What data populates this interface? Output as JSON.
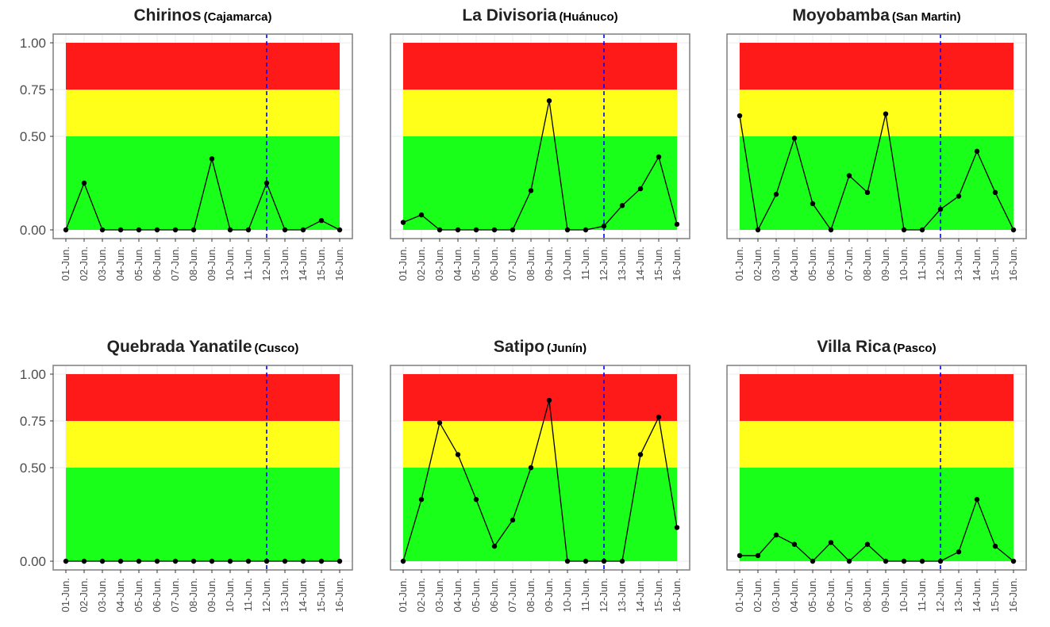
{
  "dates": [
    "01-Jun.",
    "02-Jun.",
    "03-Jun.",
    "04-Jun.",
    "05-Jun.",
    "06-Jun.",
    "07-Jun.",
    "08-Jun.",
    "09-Jun.",
    "10-Jun.",
    "11-Jun.",
    "12-Jun.",
    "13-Jun.",
    "14-Jun.",
    "15-Jun.",
    "16-Jun."
  ],
  "colors": {
    "red": "#ff1a1a",
    "yellow": "#ffff1a",
    "green": "#1aff1a",
    "line": "#000000",
    "vline": "#0000ff",
    "grid": "#ebebeb",
    "border": "#7f7f7f"
  },
  "chart_data": [
    {
      "type": "line",
      "title": "Chirinos",
      "subtitle": "(Cajamarca)",
      "x": [
        "01-Jun.",
        "02-Jun.",
        "03-Jun.",
        "04-Jun.",
        "05-Jun.",
        "06-Jun.",
        "07-Jun.",
        "08-Jun.",
        "09-Jun.",
        "10-Jun.",
        "11-Jun.",
        "12-Jun.",
        "13-Jun.",
        "14-Jun.",
        "15-Jun.",
        "16-Jun."
      ],
      "y": [
        0,
        0.25,
        0,
        0,
        0,
        0,
        0,
        0,
        0.38,
        0,
        0,
        0.25,
        0,
        0,
        0.05,
        0
      ],
      "yticks": [
        "0.00",
        "0.50",
        "0.75",
        "1.00"
      ],
      "ylim": [
        0,
        1
      ],
      "bands": [
        {
          "from": 0,
          "to": 0.5,
          "color": "green"
        },
        {
          "from": 0.5,
          "to": 0.75,
          "color": "yellow"
        },
        {
          "from": 0.75,
          "to": 1,
          "color": "red"
        }
      ],
      "vline_at": "12-Jun."
    },
    {
      "type": "line",
      "title": "La Divisoria",
      "subtitle": "(Huánuco)",
      "x": [
        "01-Jun.",
        "02-Jun.",
        "03-Jun.",
        "04-Jun.",
        "05-Jun.",
        "06-Jun.",
        "07-Jun.",
        "08-Jun.",
        "09-Jun.",
        "10-Jun.",
        "11-Jun.",
        "12-Jun.",
        "13-Jun.",
        "14-Jun.",
        "15-Jun.",
        "16-Jun."
      ],
      "y": [
        0.04,
        0.08,
        0,
        0,
        0,
        0,
        0,
        0.21,
        0.69,
        0,
        0,
        0.02,
        0.13,
        0.22,
        0.39,
        0.03
      ],
      "yticks": [
        "0.00",
        "0.50",
        "0.75",
        "1.00"
      ],
      "ylim": [
        0,
        1
      ],
      "bands": [
        {
          "from": 0,
          "to": 0.5,
          "color": "green"
        },
        {
          "from": 0.5,
          "to": 0.75,
          "color": "yellow"
        },
        {
          "from": 0.75,
          "to": 1,
          "color": "red"
        }
      ],
      "vline_at": "12-Jun."
    },
    {
      "type": "line",
      "title": "Moyobamba",
      "subtitle": "(San Martin)",
      "x": [
        "01-Jun.",
        "02-Jun.",
        "03-Jun.",
        "04-Jun.",
        "05-Jun.",
        "06-Jun.",
        "07-Jun.",
        "08-Jun.",
        "09-Jun.",
        "10-Jun.",
        "11-Jun.",
        "12-Jun.",
        "13-Jun.",
        "14-Jun.",
        "15-Jun.",
        "16-Jun."
      ],
      "y": [
        0.61,
        0,
        0.19,
        0.49,
        0.14,
        0,
        0.29,
        0.2,
        0.62,
        0,
        0,
        0.11,
        0.18,
        0.42,
        0.2,
        0
      ],
      "yticks": [
        "0.00",
        "0.50",
        "0.75",
        "1.00"
      ],
      "ylim": [
        0,
        1
      ],
      "bands": [
        {
          "from": 0,
          "to": 0.5,
          "color": "green"
        },
        {
          "from": 0.5,
          "to": 0.75,
          "color": "yellow"
        },
        {
          "from": 0.75,
          "to": 1,
          "color": "red"
        }
      ],
      "vline_at": "12-Jun."
    },
    {
      "type": "line",
      "title": "Quebrada Yanatile",
      "subtitle": "(Cusco)",
      "x": [
        "01-Jun.",
        "02-Jun.",
        "03-Jun.",
        "04-Jun.",
        "05-Jun.",
        "06-Jun.",
        "07-Jun.",
        "08-Jun.",
        "09-Jun.",
        "10-Jun.",
        "11-Jun.",
        "12-Jun.",
        "13-Jun.",
        "14-Jun.",
        "15-Jun.",
        "16-Jun."
      ],
      "y": [
        0,
        0,
        0,
        0,
        0,
        0,
        0,
        0,
        0,
        0,
        0,
        0,
        0,
        0,
        0,
        0
      ],
      "yticks": [
        "0.00",
        "0.50",
        "0.75",
        "1.00"
      ],
      "ylim": [
        0,
        1
      ],
      "bands": [
        {
          "from": 0,
          "to": 0.5,
          "color": "green"
        },
        {
          "from": 0.5,
          "to": 0.75,
          "color": "yellow"
        },
        {
          "from": 0.75,
          "to": 1,
          "color": "red"
        }
      ],
      "vline_at": "12-Jun."
    },
    {
      "type": "line",
      "title": "Satipo",
      "subtitle": "(Junín)",
      "x": [
        "01-Jun.",
        "02-Jun.",
        "03-Jun.",
        "04-Jun.",
        "05-Jun.",
        "06-Jun.",
        "07-Jun.",
        "08-Jun.",
        "09-Jun.",
        "10-Jun.",
        "11-Jun.",
        "12-Jun.",
        "13-Jun.",
        "14-Jun.",
        "15-Jun.",
        "16-Jun."
      ],
      "y": [
        0,
        0.33,
        0.74,
        0.57,
        0.33,
        0.08,
        0.22,
        0.5,
        0.86,
        0,
        0,
        0,
        0,
        0.57,
        0.77,
        0.18
      ],
      "yticks": [
        "0.00",
        "0.50",
        "0.75",
        "1.00"
      ],
      "ylim": [
        0,
        1
      ],
      "bands": [
        {
          "from": 0,
          "to": 0.5,
          "color": "green"
        },
        {
          "from": 0.5,
          "to": 0.75,
          "color": "yellow"
        },
        {
          "from": 0.75,
          "to": 1,
          "color": "red"
        }
      ],
      "vline_at": "12-Jun."
    },
    {
      "type": "line",
      "title": "Villa Rica",
      "subtitle": "(Pasco)",
      "x": [
        "01-Jun.",
        "02-Jun.",
        "03-Jun.",
        "04-Jun.",
        "05-Jun.",
        "06-Jun.",
        "07-Jun.",
        "08-Jun.",
        "09-Jun.",
        "10-Jun.",
        "11-Jun.",
        "12-Jun.",
        "13-Jun.",
        "14-Jun.",
        "15-Jun.",
        "16-Jun."
      ],
      "y": [
        0.03,
        0.03,
        0.14,
        0.09,
        0,
        0.1,
        0,
        0.09,
        0,
        0,
        0,
        0,
        0.05,
        0.33,
        0.08,
        0
      ],
      "yticks": [
        "0.00",
        "0.50",
        "0.75",
        "1.00"
      ],
      "ylim": [
        0,
        1
      ],
      "bands": [
        {
          "from": 0,
          "to": 0.5,
          "color": "green"
        },
        {
          "from": 0.5,
          "to": 0.75,
          "color": "yellow"
        },
        {
          "from": 0.75,
          "to": 1,
          "color": "red"
        }
      ],
      "vline_at": "12-Jun."
    }
  ]
}
